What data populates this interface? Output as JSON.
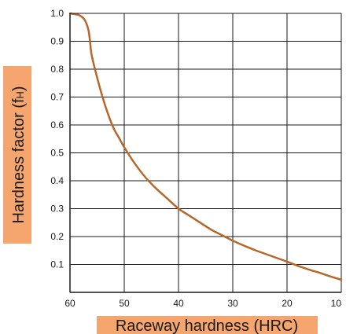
{
  "chart_data": {
    "type": "line",
    "title": "",
    "xlabel": "Raceway hardness (HRC)",
    "ylabel": "Hardness factor (f",
    "ylabel_subscript": "H",
    "ylabel_suffix": ")",
    "xlim": [
      60,
      10
    ],
    "ylim": [
      0,
      1.0
    ],
    "x_ticks": [
      60,
      50,
      40,
      30,
      20,
      10
    ],
    "y_ticks": [
      0.1,
      0.2,
      0.3,
      0.4,
      0.5,
      0.6,
      0.7,
      0.8,
      0.9,
      1.0
    ],
    "x_tick_labels": [
      "60",
      "50",
      "40",
      "30",
      "20",
      "10"
    ],
    "y_tick_labels": [
      "0.1",
      "0.2",
      "0.3",
      "0.4",
      "0.5",
      "0.6",
      "0.7",
      "0.8",
      "0.9",
      "1.0"
    ],
    "grid": true,
    "series": [
      {
        "x": [
          60,
          58.5,
          58,
          57.4,
          57,
          56.6,
          56.3,
          56,
          55,
          54,
          53,
          52,
          51,
          50,
          48,
          46,
          44,
          42,
          40,
          38,
          36,
          34,
          32,
          30,
          28,
          26,
          24,
          22,
          20,
          18,
          16,
          14,
          12,
          10
        ],
        "y": [
          1.0,
          0.995,
          0.99,
          0.98,
          0.965,
          0.94,
          0.9,
          0.85,
          0.77,
          0.7,
          0.64,
          0.59,
          0.555,
          0.52,
          0.46,
          0.41,
          0.37,
          0.335,
          0.3,
          0.275,
          0.25,
          0.225,
          0.205,
          0.185,
          0.168,
          0.152,
          0.138,
          0.124,
          0.11,
          0.095,
          0.082,
          0.07,
          0.057,
          0.045
        ]
      }
    ],
    "colors": {
      "curve": "#b8672a",
      "grid": "#1a1a1a",
      "label_background": "#f4a66e"
    }
  }
}
